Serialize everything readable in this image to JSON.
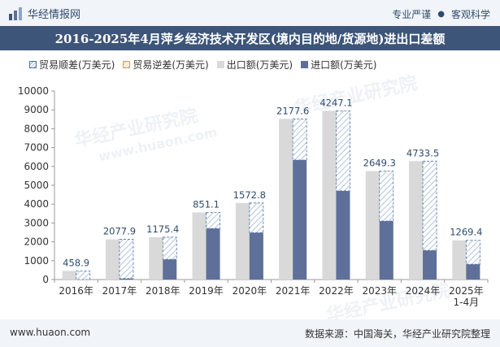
{
  "header": {
    "brand_name": "华经情报网",
    "tagline_left": "专业严谨",
    "tagline_right": "客观科学",
    "title": "2016-2025年4月萍乡经济技术开发区(境内目的地/货源地)进出口差额"
  },
  "legend": {
    "surplus": "贸易顺差(万美元)",
    "deficit": "贸易逆差(万美元)",
    "export": "出口额(万美元)",
    "import": "进口额(万美元)"
  },
  "footer": {
    "website": "www.huaon.com",
    "source": "数据来源：中国海关，华经产业研究院整理"
  },
  "watermarks": [
    "华经产业研究院",
    "www.huaon.com"
  ],
  "colors": {
    "export": "#d9d9d9",
    "import": "#5e7099",
    "surplus_stroke": "#4a6fa0",
    "label": "#2f4a6d"
  },
  "chart_data": {
    "type": "bar",
    "categories": [
      "2016年",
      "2017年",
      "2018年",
      "2019年",
      "2020年",
      "2021年",
      "2022年",
      "2023年",
      "2024年",
      "2025年\n1-4月"
    ],
    "series": [
      {
        "name": "出口额(万美元)",
        "values": [
          459,
          2130,
          2245,
          3560,
          4060,
          8520,
          8950,
          5750,
          6280,
          2080
        ]
      },
      {
        "name": "进口额(万美元)",
        "values": [
          0,
          52,
          1070,
          2709,
          2487,
          6342,
          4703,
          3101,
          1546,
          811
        ]
      },
      {
        "name": "贸易顺差(万美元)",
        "values": [
          458.9,
          2077.9,
          1175.4,
          851.1,
          1572.8,
          2177.6,
          4247.1,
          2649.3,
          4733.5,
          1269.4
        ]
      }
    ],
    "ylim": [
      0,
      10000
    ],
    "yticks": [
      0,
      1000,
      2000,
      3000,
      4000,
      5000,
      6000,
      7000,
      8000,
      9000,
      10000
    ],
    "grid": false,
    "legend_position": "top"
  }
}
